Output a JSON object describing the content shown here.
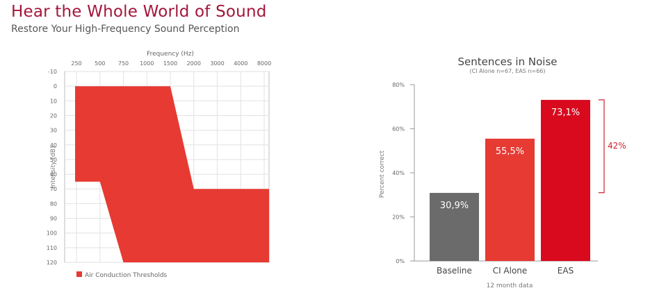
{
  "header": {
    "title": "Hear the Whole World of Sound",
    "subtitle": "Restore Your High-Frequency Sound Perception"
  },
  "chart_data": [
    {
      "type": "area",
      "title": "",
      "xlabel": "Frequency (Hz)",
      "ylabel": "Intensity (dB)",
      "x_ticks": [
        "250",
        "500",
        "750",
        "1000",
        "1500",
        "2000",
        "3000",
        "4000",
        "8000"
      ],
      "y_ticks": [
        "-10",
        "0",
        "10",
        "20",
        "30",
        "40",
        "50",
        "60",
        "70",
        "80",
        "90",
        "100",
        "110",
        "120"
      ],
      "ylim": [
        -10,
        120
      ],
      "y_inverted": true,
      "color": "#e63a33",
      "legend": "Air Conduction Thresholds",
      "legend_position": "bottom-left",
      "region": {
        "upper_bound": [
          {
            "x": "250",
            "y": 0
          },
          {
            "x": "1500",
            "y": 0
          },
          {
            "x": "2000",
            "y": 70
          },
          {
            "x": "8000",
            "y": 70
          }
        ],
        "lower_bound": [
          {
            "x": "250",
            "y": 65
          },
          {
            "x": "500",
            "y": 65
          },
          {
            "x": "750",
            "y": 120
          },
          {
            "x": "8000",
            "y": 120
          }
        ]
      }
    },
    {
      "type": "bar",
      "title": "Sentences in Noise",
      "subtitle": "(CI Alone n=67, EAS n=66)",
      "xlabel": "12 month data",
      "ylabel": "Percent correct",
      "ylim": [
        0,
        80
      ],
      "y_ticks": [
        "0%",
        "20%",
        "40%",
        "60%",
        "80%"
      ],
      "categories": [
        "Baseline",
        "CI Alone",
        "EAS"
      ],
      "values": [
        30.9,
        55.5,
        73.1
      ],
      "value_labels": [
        "30,9%",
        "55,5%",
        "73,1%"
      ],
      "colors": [
        "#6b6b6b",
        "#e63a33",
        "#d90a1e"
      ],
      "annotation": {
        "label": "42%",
        "from": 31,
        "to": 73.1,
        "color": "#d0202e"
      }
    }
  ]
}
